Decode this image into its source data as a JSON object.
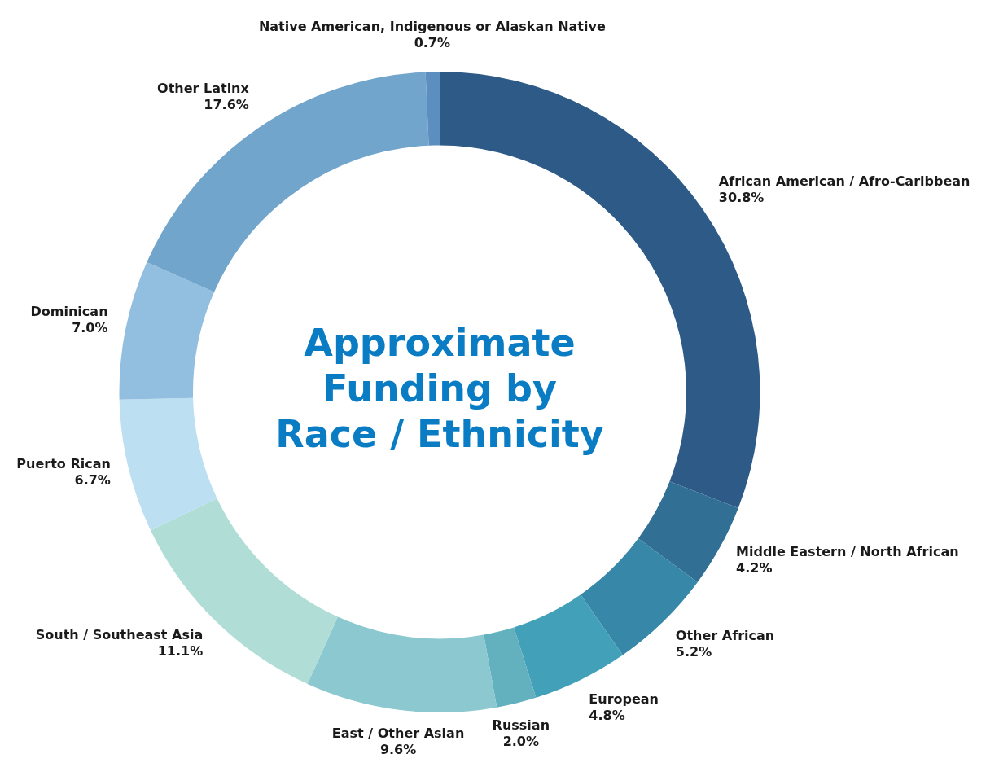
{
  "chart_data": {
    "type": "donut",
    "title": "Approximate Funding by Race / Ethnicity",
    "categories": [
      "African American / Afro-Caribbean",
      "Middle Eastern / North African",
      "Other African",
      "European",
      "Russian",
      "East / Other Asian",
      "South / Southeast Asia",
      "Puerto Rican",
      "Dominican",
      "Other Latinx",
      "Native American, Indigenous or Alaskan Native"
    ],
    "values": [
      30.8,
      4.2,
      5.2,
      4.8,
      2.0,
      9.6,
      11.1,
      6.7,
      7.0,
      17.6,
      0.7
    ],
    "value_labels": [
      "30.8%",
      "4.2%",
      "5.2%",
      "4.8%",
      "2.0%",
      "9.6%",
      "11.1%",
      "6.7%",
      "7.0%",
      "17.6%",
      "0.7%"
    ],
    "colors": [
      "#2d5a86",
      "#316f95",
      "#3787a8",
      "#42a0b9",
      "#63b0bf",
      "#8cc8cf",
      "#b0ddd6",
      "#bcdff2",
      "#92bfe0",
      "#72a5cc",
      "#5c8fbf"
    ],
    "legend": false
  }
}
